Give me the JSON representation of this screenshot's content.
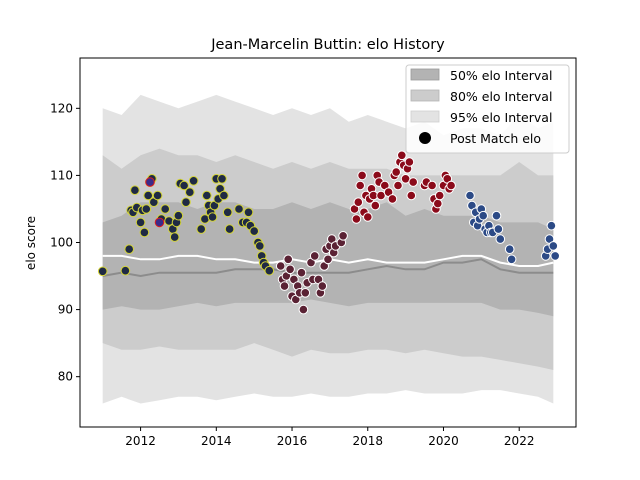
{
  "chart_data": {
    "type": "scatter",
    "title": "Jean-Marcelin Buttin: elo History",
    "xlabel": "",
    "ylabel": "elo score",
    "xlim": [
      2010.4,
      2023.5
    ],
    "ylim": [
      72.5,
      127.5
    ],
    "xticks": [
      2012,
      2014,
      2016,
      2018,
      2020,
      2022
    ],
    "yticks": [
      80,
      90,
      100,
      110,
      120
    ],
    "legend_position": "top-right",
    "legend": [
      {
        "label": "50% elo Interval",
        "color": "#b3b3b3"
      },
      {
        "label": "80% elo Interval",
        "color": "#cccccc"
      },
      {
        "label": "95% elo Interval",
        "color": "#e3e3e3"
      },
      {
        "label": "Post Match elo",
        "color": "#000000"
      }
    ],
    "bands": {
      "x": [
        2011.0,
        2011.5,
        2012.0,
        2012.5,
        2013.0,
        2013.5,
        2014.0,
        2014.5,
        2015.0,
        2015.5,
        2016.0,
        2016.5,
        2017.0,
        2017.5,
        2018.0,
        2018.5,
        2019.0,
        2019.5,
        2020.0,
        2020.5,
        2021.0,
        2021.5,
        2022.0,
        2022.5,
        2022.9
      ],
      "p95_upper": [
        120,
        119,
        122,
        121,
        120,
        121,
        122,
        121,
        120,
        119,
        120,
        119,
        120,
        118,
        119,
        118,
        117,
        118,
        116,
        117,
        117,
        116,
        119,
        117,
        118
      ],
      "p95_lower": [
        76,
        77,
        76,
        76.5,
        77,
        77,
        76.5,
        77,
        77.5,
        77,
        77,
        77.5,
        77,
        77,
        77.5,
        77.5,
        78,
        77.5,
        77.5,
        77.5,
        78,
        78,
        77.5,
        77,
        76
      ],
      "p80_upper": [
        113,
        111,
        113,
        114,
        113,
        113,
        112,
        113,
        112,
        111,
        112,
        111,
        112,
        111,
        111,
        111,
        110,
        110,
        110,
        110,
        110,
        110,
        112,
        110,
        110
      ],
      "p80_lower": [
        85,
        84,
        84,
        84.5,
        84,
        84,
        84,
        84,
        85,
        84,
        83,
        84,
        83.5,
        83.5,
        84,
        84,
        83.5,
        84,
        83.5,
        83,
        83,
        82.5,
        82,
        81.5,
        81
      ],
      "p50_upper": [
        103,
        104,
        106,
        106,
        106,
        105,
        106,
        106,
        105,
        105,
        106,
        105,
        106,
        105,
        105,
        106,
        104,
        105,
        104,
        104,
        104,
        103,
        103,
        103,
        102
      ],
      "p50_lower": [
        90,
        90.5,
        90,
        90,
        90.5,
        91,
        90.5,
        91,
        91,
        91,
        91,
        91.5,
        91,
        90.5,
        91,
        91,
        91,
        91,
        91,
        91,
        91,
        90,
        90,
        89.5,
        89
      ],
      "median": [
        98,
        98,
        97.5,
        97.5,
        98,
        98,
        97.5,
        97.5,
        97,
        97,
        97.5,
        97,
        97.5,
        97,
        97.5,
        97,
        97,
        97,
        97.5,
        98,
        98,
        97,
        96.5,
        96.5,
        97
      ],
      "lower_line": [
        95,
        95.5,
        95,
        95.5,
        95.5,
        95.5,
        95.5,
        96,
        96,
        96,
        95.5,
        95.5,
        95.5,
        95.5,
        96,
        96.5,
        96,
        96,
        97,
        97,
        97.5,
        96,
        95.5,
        95.5,
        95.5
      ]
    },
    "series": [
      {
        "fill": "#1f2a44",
        "edge": "#d4d438",
        "points": [
          [
            2011.0,
            95.7
          ],
          [
            2011.6,
            95.8
          ],
          [
            2011.7,
            99.0
          ],
          [
            2011.75,
            104.8
          ],
          [
            2011.8,
            104.5
          ],
          [
            2011.85,
            107.8
          ],
          [
            2011.9,
            105.2
          ],
          [
            2012.0,
            103.0
          ],
          [
            2012.05,
            104.8
          ],
          [
            2012.1,
            101.5
          ],
          [
            2012.15,
            105.0
          ],
          [
            2012.2,
            107.0
          ],
          [
            2012.25,
            109.0
          ],
          [
            2012.3,
            109.5
          ],
          [
            2012.35,
            106.0
          ],
          [
            2012.45,
            107.0
          ],
          [
            2012.55,
            103.5
          ],
          [
            2012.65,
            105.0
          ],
          [
            2012.75,
            103.2
          ],
          [
            2012.85,
            102.0
          ],
          [
            2012.9,
            100.8
          ],
          [
            2012.95,
            103.0
          ],
          [
            2013.0,
            104.0
          ],
          [
            2013.05,
            108.8
          ],
          [
            2013.15,
            108.5
          ],
          [
            2013.2,
            106.0
          ],
          [
            2013.3,
            107.5
          ],
          [
            2013.4,
            109.2
          ],
          [
            2013.6,
            102.0
          ],
          [
            2013.7,
            103.5
          ],
          [
            2013.75,
            107.0
          ],
          [
            2013.8,
            105.5
          ],
          [
            2013.85,
            104.5
          ],
          [
            2013.9,
            103.8
          ],
          [
            2013.95,
            105.5
          ],
          [
            2014.0,
            109.5
          ],
          [
            2014.05,
            106.5
          ],
          [
            2014.1,
            108.0
          ],
          [
            2014.15,
            109.5
          ],
          [
            2014.2,
            107.0
          ],
          [
            2014.3,
            104.5
          ],
          [
            2014.35,
            102.0
          ],
          [
            2014.6,
            105.0
          ],
          [
            2014.7,
            103.0
          ],
          [
            2014.8,
            103.0
          ],
          [
            2014.85,
            104.5
          ],
          [
            2014.9,
            102.5
          ],
          [
            2015.0,
            101.7
          ],
          [
            2015.1,
            100.0
          ],
          [
            2015.15,
            99.5
          ],
          [
            2015.2,
            98.0
          ],
          [
            2015.25,
            97.0
          ],
          [
            2015.3,
            96.5
          ],
          [
            2015.4,
            95.8
          ]
        ]
      },
      {
        "fill": "#5a2234",
        "edge": "#ffffff",
        "points": [
          [
            2015.7,
            96.5
          ],
          [
            2015.75,
            94.5
          ],
          [
            2015.8,
            93.5
          ],
          [
            2015.85,
            95.0
          ],
          [
            2015.9,
            97.5
          ],
          [
            2015.95,
            96.0
          ],
          [
            2016.0,
            92.0
          ],
          [
            2016.05,
            94.5
          ],
          [
            2016.1,
            91.5
          ],
          [
            2016.15,
            93.5
          ],
          [
            2016.2,
            92.5
          ],
          [
            2016.25,
            95.5
          ],
          [
            2016.3,
            90.0
          ],
          [
            2016.35,
            92.5
          ],
          [
            2016.4,
            94.0
          ],
          [
            2016.5,
            97.0
          ],
          [
            2016.55,
            94.5
          ],
          [
            2016.6,
            98.0
          ],
          [
            2016.7,
            94.5
          ],
          [
            2016.75,
            92.5
          ],
          [
            2016.8,
            93.5
          ],
          [
            2016.85,
            96.5
          ],
          [
            2016.9,
            99.0
          ],
          [
            2016.95,
            97.5
          ],
          [
            2017.0,
            99.5
          ],
          [
            2017.05,
            100.5
          ],
          [
            2017.1,
            98.5
          ],
          [
            2017.15,
            99.5
          ],
          [
            2017.3,
            100.0
          ],
          [
            2017.35,
            101.0
          ]
        ]
      },
      {
        "fill": "#8b0a1a",
        "edge": "#ffffff",
        "points": [
          [
            2017.65,
            105.0
          ],
          [
            2017.7,
            103.5
          ],
          [
            2017.75,
            106.0
          ],
          [
            2017.8,
            108.5
          ],
          [
            2017.85,
            110.0
          ],
          [
            2017.9,
            104.5
          ],
          [
            2017.95,
            107.0
          ],
          [
            2018.0,
            103.8
          ],
          [
            2018.05,
            106.5
          ],
          [
            2018.1,
            108.0
          ],
          [
            2018.15,
            107.0
          ],
          [
            2018.2,
            105.5
          ],
          [
            2018.25,
            110.0
          ],
          [
            2018.3,
            109.0
          ],
          [
            2018.35,
            107.0
          ],
          [
            2018.45,
            108.5
          ],
          [
            2018.55,
            107.5
          ],
          [
            2018.65,
            106.5
          ],
          [
            2018.7,
            110.0
          ],
          [
            2018.75,
            110.5
          ],
          [
            2018.8,
            108.5
          ],
          [
            2018.85,
            112.0
          ],
          [
            2018.9,
            113.0
          ],
          [
            2018.95,
            111.5
          ],
          [
            2019.0,
            109.5
          ],
          [
            2019.05,
            111.0
          ],
          [
            2019.1,
            112.0
          ],
          [
            2019.15,
            107.0
          ],
          [
            2019.2,
            109.0
          ],
          [
            2019.5,
            108.5
          ],
          [
            2019.55,
            109.0
          ],
          [
            2019.7,
            108.5
          ],
          [
            2019.75,
            106.5
          ],
          [
            2019.8,
            105.0
          ],
          [
            2019.85,
            105.8
          ],
          [
            2019.9,
            107.0
          ],
          [
            2020.0,
            108.5
          ],
          [
            2020.05,
            110.0
          ],
          [
            2020.1,
            109.5
          ],
          [
            2020.15,
            108.0
          ],
          [
            2020.2,
            108.5
          ]
        ]
      },
      {
        "fill": "#2c4a86",
        "edge": "#ffffff",
        "points": [
          [
            2020.7,
            107.0
          ],
          [
            2020.75,
            105.5
          ],
          [
            2020.8,
            103.0
          ],
          [
            2020.85,
            104.5
          ],
          [
            2020.9,
            102.5
          ],
          [
            2020.95,
            103.5
          ],
          [
            2021.0,
            105.0
          ],
          [
            2021.05,
            104.0
          ],
          [
            2021.1,
            102.0
          ],
          [
            2021.15,
            101.5
          ],
          [
            2021.2,
            102.5
          ],
          [
            2021.25,
            101.5
          ],
          [
            2021.3,
            101.5
          ],
          [
            2021.4,
            104.0
          ],
          [
            2021.45,
            102.0
          ],
          [
            2021.5,
            100.5
          ],
          [
            2021.75,
            99.0
          ],
          [
            2021.8,
            97.5
          ],
          [
            2022.7,
            98.0
          ],
          [
            2022.75,
            99.0
          ],
          [
            2022.8,
            100.5
          ],
          [
            2022.85,
            102.5
          ],
          [
            2022.9,
            99.5
          ],
          [
            2022.95,
            98.0
          ]
        ]
      },
      {
        "fill": "#3a2a8a",
        "edge": "#e01c1c",
        "points": [
          [
            2012.25,
            109.0
          ],
          [
            2012.5,
            103.0
          ]
        ]
      }
    ]
  }
}
